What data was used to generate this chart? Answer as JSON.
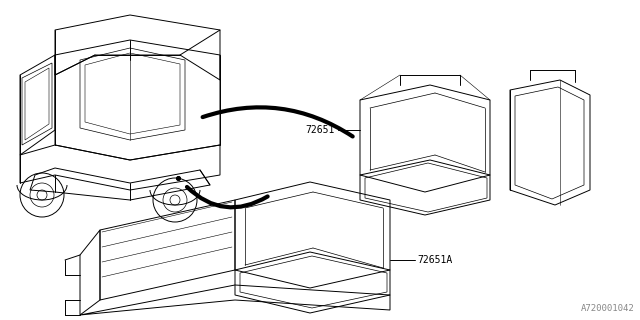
{
  "bg_color": "#ffffff",
  "line_color": "#000000",
  "label_72651": "72651",
  "label_72651A": "72651A",
  "watermark": "A720001042",
  "fig_width": 6.4,
  "fig_height": 3.2,
  "dpi": 100
}
